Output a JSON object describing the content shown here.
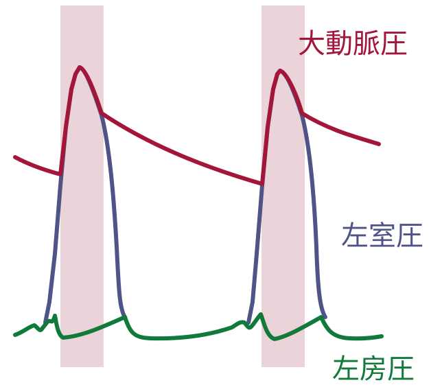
{
  "labels": {
    "aortic": "大動脈圧",
    "left_ventricular": "左室圧",
    "left_atrial": "左房圧"
  },
  "colors": {
    "aortic": "#a3163a",
    "left_ventricular": "#4f5387",
    "left_atrial": "#117a3a",
    "ejection_band": "#ead3d9"
  }
}
